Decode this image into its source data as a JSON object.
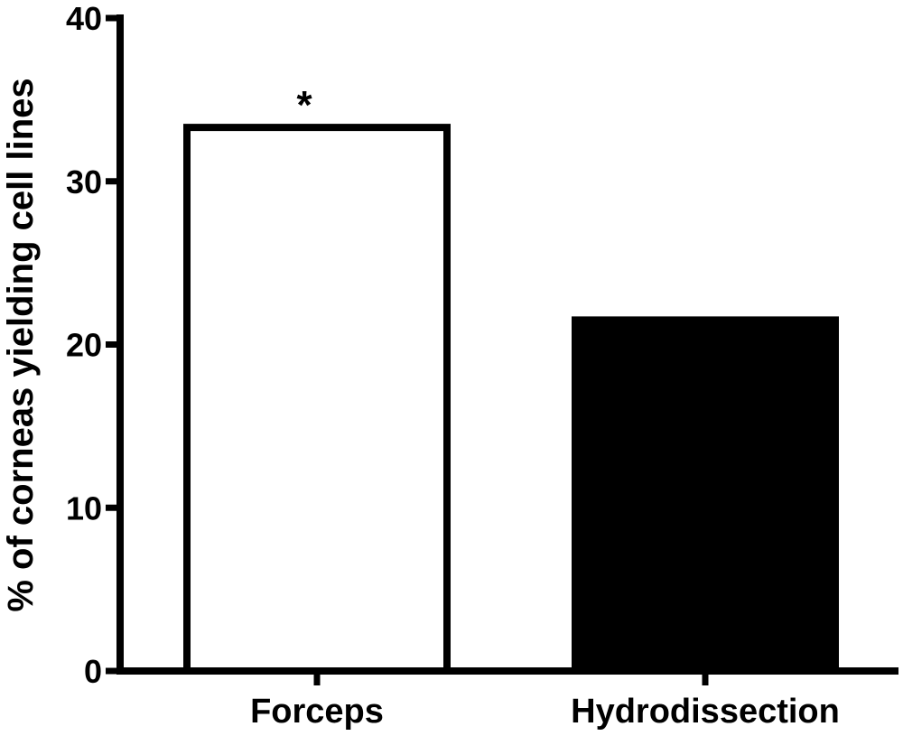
{
  "chart_data": {
    "type": "bar",
    "categories": [
      "Forceps",
      "Hydrodissection"
    ],
    "values": [
      33.3,
      21.5
    ],
    "bar_colors": [
      "#ffffff",
      "#000000"
    ],
    "title": "",
    "xlabel": "",
    "ylabel": "% of corneas yielding cell lines",
    "ylim": [
      0,
      40
    ],
    "yticks": [
      0,
      10,
      20,
      30,
      40
    ],
    "annotations": [
      {
        "category": "Forceps",
        "text": "*"
      }
    ],
    "grid": false,
    "legend": "none"
  }
}
